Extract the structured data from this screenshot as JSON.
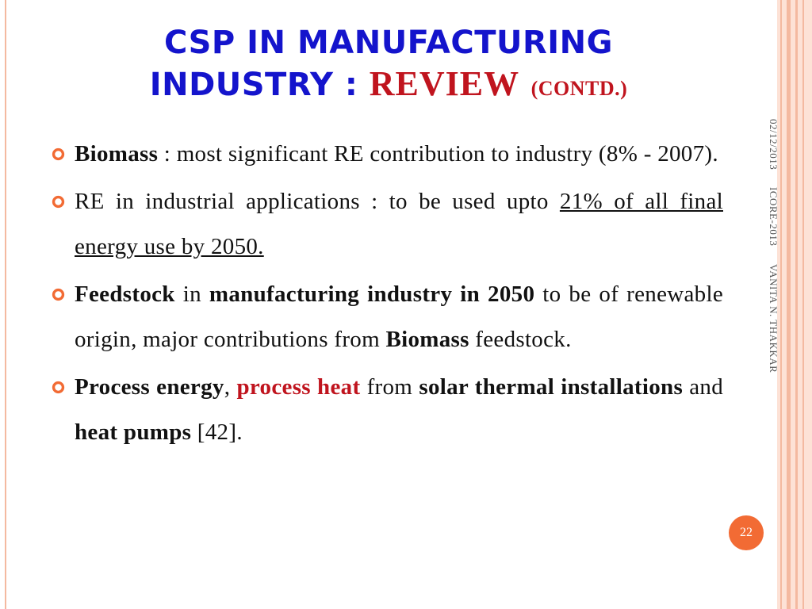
{
  "title": {
    "line1": "CSP IN MANUFACTURING",
    "line2": "INDUSTRY : ",
    "review": "REVIEW",
    "contd": "(CONTD.)"
  },
  "bullets": [
    {
      "parts": [
        {
          "t": "Biomass",
          "s": "b"
        },
        {
          "t": " : most significant RE contribution to industry (8% - 2007).",
          "s": ""
        }
      ]
    },
    {
      "parts": [
        {
          "t": "RE in industrial applications : to be used upto ",
          "s": ""
        },
        {
          "t": "21% of all final energy use by 2050.",
          "s": "u"
        }
      ]
    },
    {
      "parts": [
        {
          "t": "Feedstock",
          "s": "b"
        },
        {
          "t": " in ",
          "s": ""
        },
        {
          "t": "manufacturing industry in 2050",
          "s": "b"
        },
        {
          "t": " to be of renewable origin, major contributions from ",
          "s": ""
        },
        {
          "t": "Biomass",
          "s": "b"
        },
        {
          "t": " feedstock.",
          "s": ""
        }
      ]
    },
    {
      "parts": [
        {
          "t": "Process energy",
          "s": "b"
        },
        {
          "t": ", ",
          "s": ""
        },
        {
          "t": "process heat",
          "s": "red"
        },
        {
          "t": " from ",
          "s": ""
        },
        {
          "t": "solar thermal installations",
          "s": "b"
        },
        {
          "t": " and ",
          "s": ""
        },
        {
          "t": "heat pumps",
          "s": "b"
        },
        {
          "t": " [42].",
          "s": ""
        }
      ]
    }
  ],
  "sidebar": {
    "date": "02/12/2013",
    "event": "ICORE-2013",
    "author": "VANITA N. THAKKAR"
  },
  "page_number": "22",
  "colors": {
    "title_blue": "#1414cc",
    "accent_red": "#c0141e",
    "bullet_orange": "#f26b34",
    "border_peach": "#f4b9a0"
  },
  "icons": {
    "bullet": "circle-bullet-icon"
  }
}
